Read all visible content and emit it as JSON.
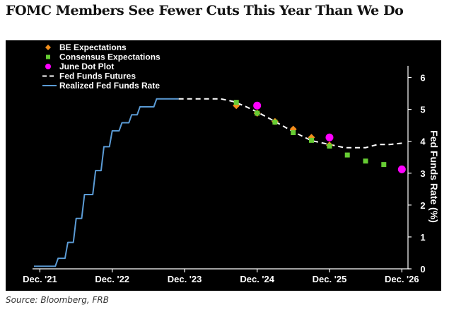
{
  "header": {
    "title": "FOMC Members See Fewer Cuts This Year Than We Do"
  },
  "footer": {
    "source": "Source: Bloomberg, FRB"
  },
  "chart_data": {
    "type": "line",
    "title": "FOMC Members See Fewer Cuts This Year Than We Do",
    "xlabel": "",
    "ylabel": "Fed Funds Rate (%)",
    "ylim": [
      0,
      6.5
    ],
    "xlim": [
      "2021-11-15",
      "2027-01-15"
    ],
    "y_ticks": [
      0,
      1,
      2,
      3,
      4,
      5,
      6
    ],
    "x_ticks": [
      {
        "label": "Dec. '21",
        "date": "2021-12-15"
      },
      {
        "label": "Dec. '22",
        "date": "2022-12-15"
      },
      {
        "label": "Dec. '23",
        "date": "2023-12-15"
      },
      {
        "label": "Dec. '24",
        "date": "2024-12-15"
      },
      {
        "label": "Dec. '25",
        "date": "2025-12-15"
      },
      {
        "label": "Dec. '26",
        "date": "2026-12-15"
      }
    ],
    "y_axis_side": "right",
    "grid": false,
    "legend_position": "top-left",
    "colors": {
      "background": "#000000",
      "be": "#f28e1c",
      "consensus": "#66cc33",
      "dot_plot": "#ff00ff",
      "futures": "#ffffff",
      "realized": "#5b9bd5"
    },
    "series": [
      {
        "name": "BE Expectations",
        "kind": "marker-diamond",
        "color": "#f28e1c",
        "points": [
          {
            "x": "2024-09-01",
            "y": 5.12
          },
          {
            "x": "2024-12-15",
            "y": 4.88
          },
          {
            "x": "2025-03-15",
            "y": 4.62
          },
          {
            "x": "2025-06-15",
            "y": 4.38
          },
          {
            "x": "2025-09-15",
            "y": 4.12
          },
          {
            "x": "2025-12-15",
            "y": 3.88
          }
        ]
      },
      {
        "name": "Consensus Expectations",
        "kind": "marker-square",
        "color": "#66cc33",
        "points": [
          {
            "x": "2024-09-01",
            "y": 5.22
          },
          {
            "x": "2024-12-15",
            "y": 4.88
          },
          {
            "x": "2025-03-15",
            "y": 4.6
          },
          {
            "x": "2025-06-15",
            "y": 4.27
          },
          {
            "x": "2025-09-15",
            "y": 4.03
          },
          {
            "x": "2025-12-15",
            "y": 3.85
          },
          {
            "x": "2026-03-15",
            "y": 3.57
          },
          {
            "x": "2026-06-15",
            "y": 3.38
          },
          {
            "x": "2026-09-15",
            "y": 3.27
          }
        ]
      },
      {
        "name": "June Dot Plot",
        "kind": "marker-circle",
        "color": "#ff00ff",
        "points": [
          {
            "x": "2024-12-15",
            "y": 5.12
          },
          {
            "x": "2025-12-15",
            "y": 4.12
          },
          {
            "x": "2026-12-15",
            "y": 3.12
          }
        ]
      },
      {
        "name": "Fed Funds Futures",
        "kind": "dashed-line",
        "color": "#ffffff",
        "points": [
          {
            "x": "2023-11-15",
            "y": 5.33
          },
          {
            "x": "2024-06-15",
            "y": 5.33
          },
          {
            "x": "2024-08-15",
            "y": 5.25
          },
          {
            "x": "2024-10-15",
            "y": 5.1
          },
          {
            "x": "2024-12-15",
            "y": 4.92
          },
          {
            "x": "2025-03-15",
            "y": 4.62
          },
          {
            "x": "2025-06-15",
            "y": 4.3
          },
          {
            "x": "2025-09-15",
            "y": 4.02
          },
          {
            "x": "2025-12-15",
            "y": 3.9
          },
          {
            "x": "2026-03-01",
            "y": 3.8
          },
          {
            "x": "2026-06-15",
            "y": 3.8
          },
          {
            "x": "2026-08-15",
            "y": 3.9
          },
          {
            "x": "2026-10-15",
            "y": 3.9
          },
          {
            "x": "2027-01-01",
            "y": 3.95
          }
        ]
      },
      {
        "name": "Realized Fed Funds Rate",
        "kind": "step-line",
        "color": "#5b9bd5",
        "points": [
          {
            "x": "2021-11-15",
            "y": 0.08
          },
          {
            "x": "2022-03-17",
            "y": 0.33
          },
          {
            "x": "2022-05-05",
            "y": 0.83
          },
          {
            "x": "2022-06-16",
            "y": 1.58
          },
          {
            "x": "2022-07-28",
            "y": 2.33
          },
          {
            "x": "2022-09-22",
            "y": 3.08
          },
          {
            "x": "2022-11-03",
            "y": 3.83
          },
          {
            "x": "2022-12-15",
            "y": 4.33
          },
          {
            "x": "2023-02-02",
            "y": 4.58
          },
          {
            "x": "2023-03-23",
            "y": 4.83
          },
          {
            "x": "2023-05-04",
            "y": 5.08
          },
          {
            "x": "2023-07-27",
            "y": 5.33
          },
          {
            "x": "2023-11-15",
            "y": 5.33
          }
        ]
      }
    ]
  }
}
